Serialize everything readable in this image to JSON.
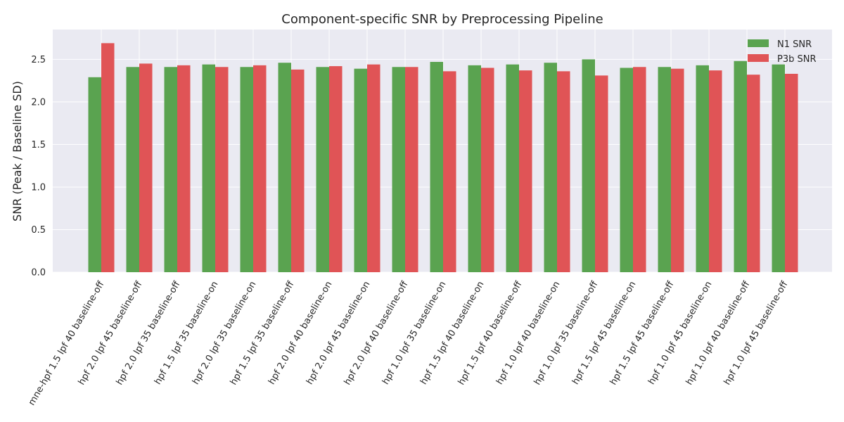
{
  "chart_data": {
    "type": "bar",
    "title": "Component-specific SNR by Preprocessing Pipeline",
    "xlabel": "",
    "ylabel": "SNR (Peak / Baseline SD)",
    "ylim": [
      0,
      2.85
    ],
    "yticks": [
      0.0,
      0.5,
      1.0,
      1.5,
      2.0,
      2.5
    ],
    "ytick_labels": [
      "0.0",
      "0.5",
      "1.0",
      "1.5",
      "2.0",
      "2.5"
    ],
    "grid": true,
    "legend_position": "top-right",
    "categories": [
      "mne-hpf 1.5 lpf 40 baseline-off",
      "hpf 2.0 lpf 45 baseline-off",
      "hpf 2.0 lpf 35 baseline-off",
      "hpf 1.5 lpf 35 baseline-on",
      "hpf 2.0 lpf 35 baseline-on",
      "hpf 1.5 lpf 35 baseline-off",
      "hpf 2.0 lpf 40 baseline-on",
      "hpf 2.0 lpf 45 baseline-on",
      "hpf 2.0 lpf 40 baseline-off",
      "hpf 1.0 lpf 35 baseline-on",
      "hpf 1.5 lpf 40 baseline-on",
      "hpf 1.5 lpf 40 baseline-off",
      "hpf 1.0 lpf 40 baseline-on",
      "hpf 1.0 lpf 35 baseline-off",
      "hpf 1.5 lpf 45 baseline-on",
      "hpf 1.5 lpf 45 baseline-off",
      "hpf 1.0 lpf 45 baseline-on",
      "hpf 1.0 lpf 40 baseline-off",
      "hpf 1.0 lpf 45 baseline-off"
    ],
    "series": [
      {
        "name": "N1 SNR",
        "color": "#5aa350",
        "values": [
          2.29,
          2.41,
          2.41,
          2.44,
          2.41,
          2.46,
          2.41,
          2.39,
          2.41,
          2.47,
          2.43,
          2.44,
          2.46,
          2.5,
          2.4,
          2.41,
          2.43,
          2.48,
          2.44
        ]
      },
      {
        "name": "P3b SNR",
        "color": "#e05456",
        "values": [
          2.69,
          2.45,
          2.43,
          2.41,
          2.43,
          2.38,
          2.42,
          2.44,
          2.41,
          2.36,
          2.4,
          2.37,
          2.36,
          2.31,
          2.41,
          2.39,
          2.37,
          2.32,
          2.33
        ]
      }
    ]
  }
}
